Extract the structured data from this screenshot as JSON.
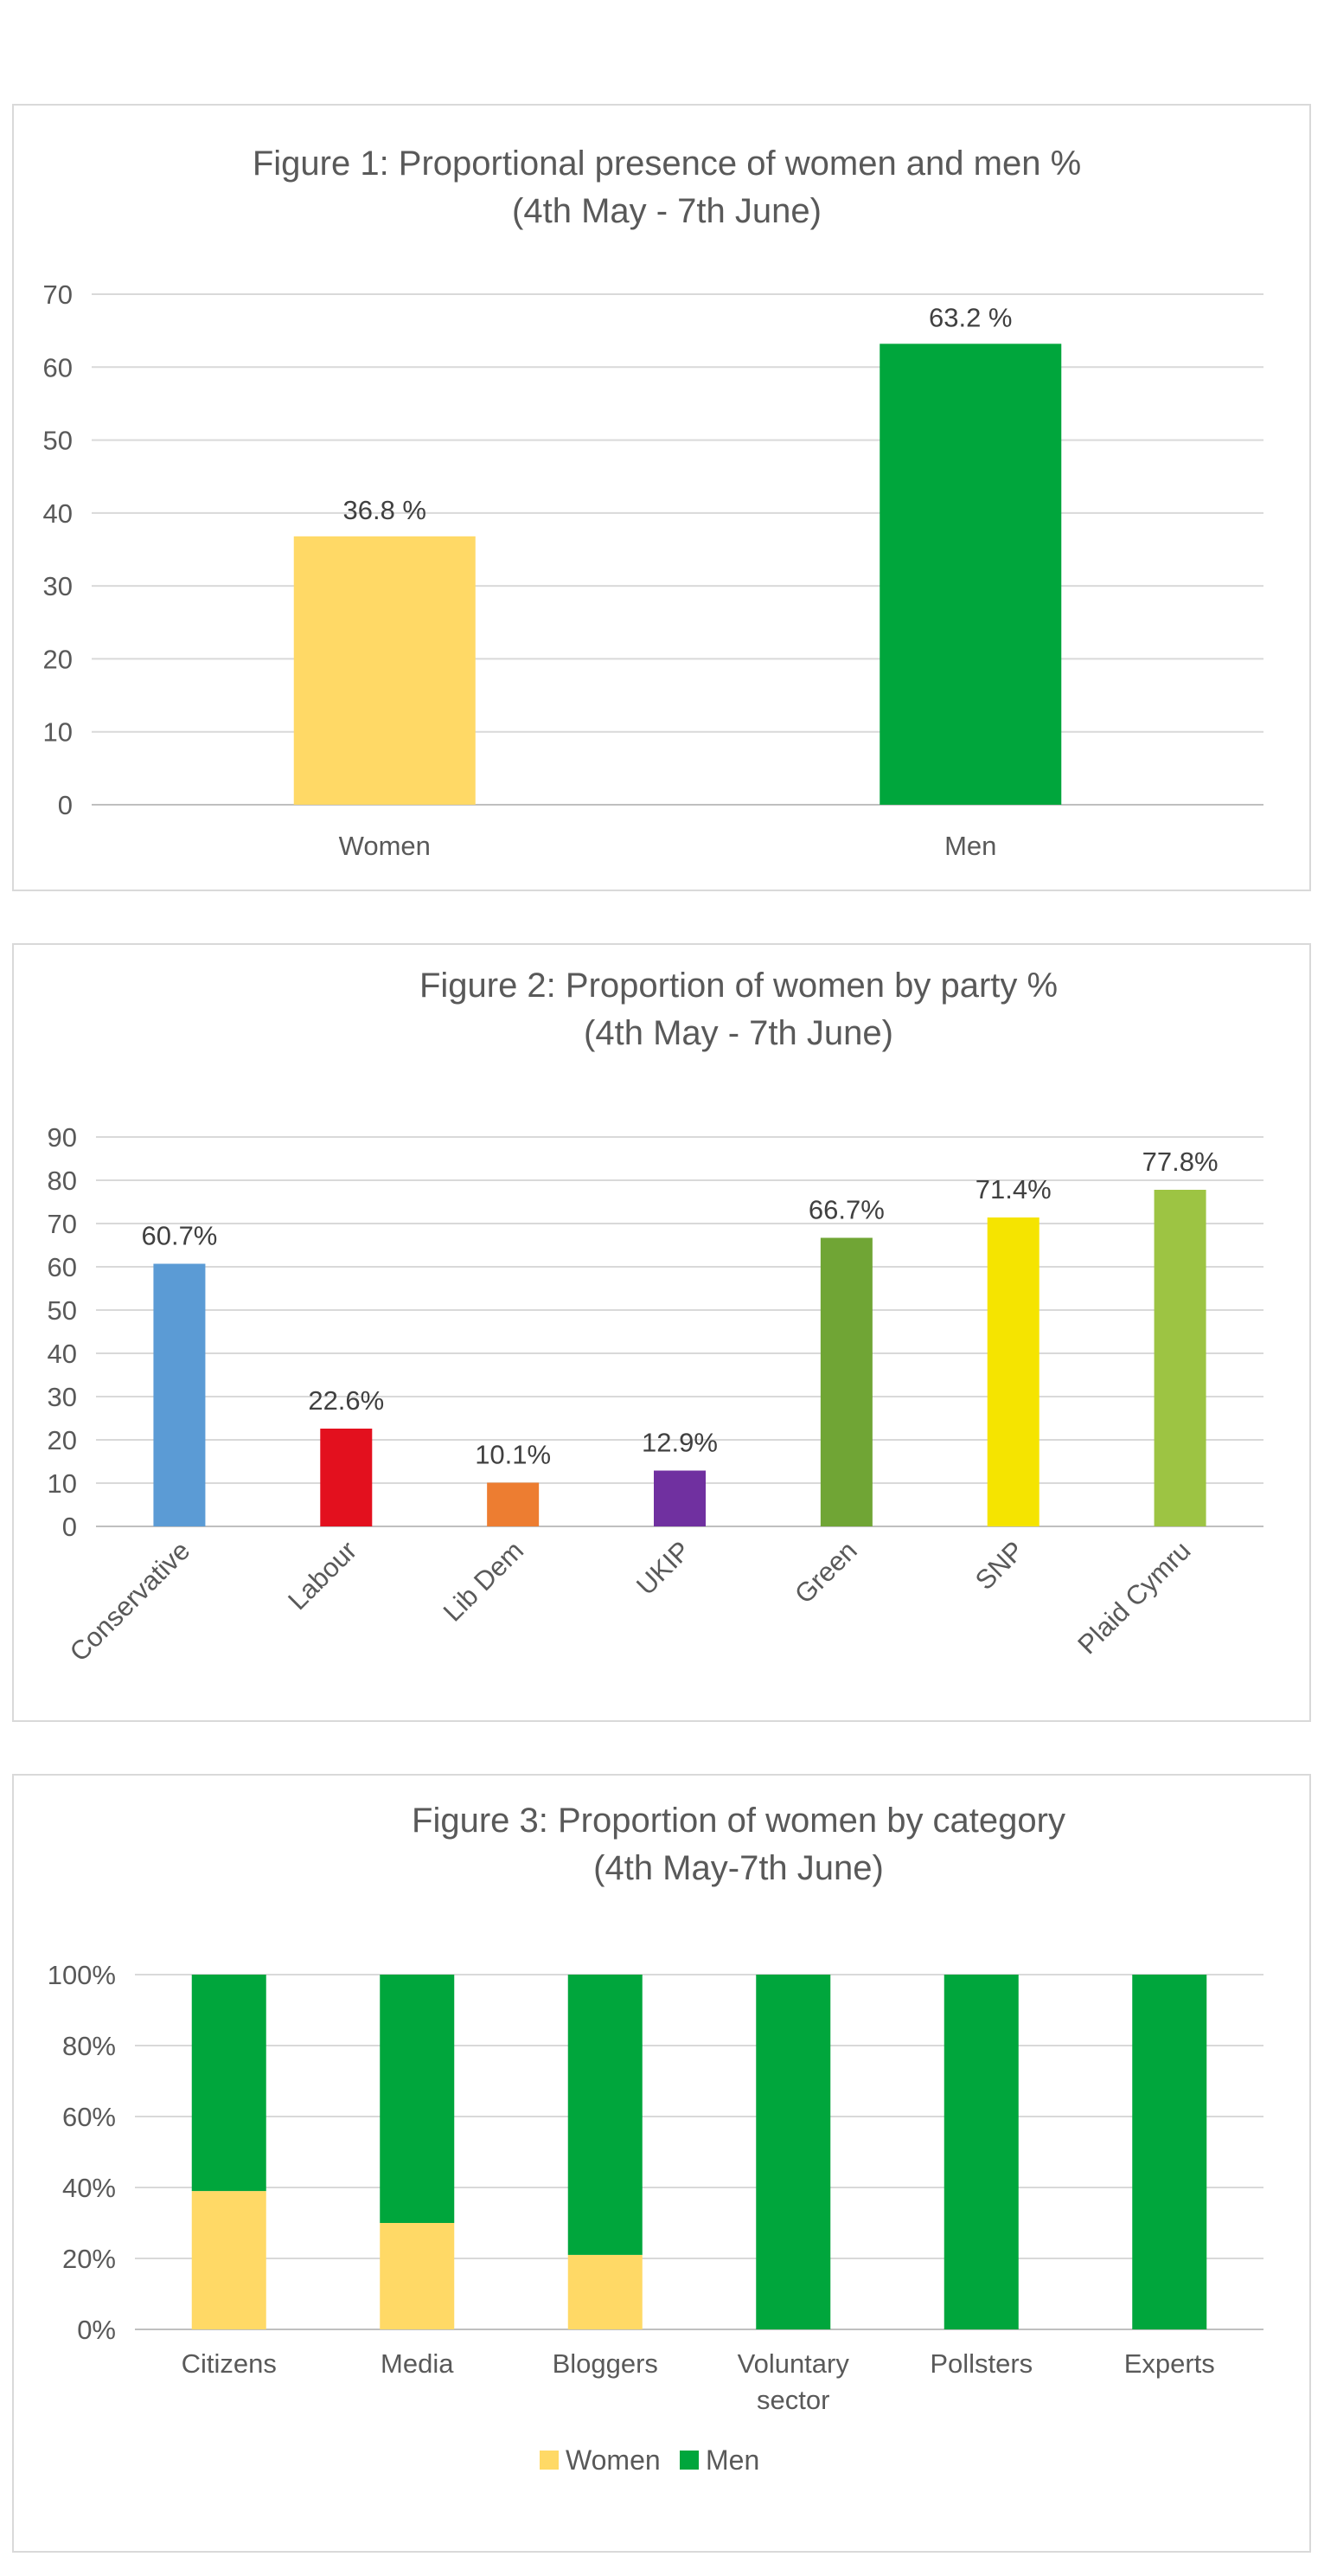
{
  "chart_data": [
    {
      "type": "bar",
      "title": "Figure 1: Proportional presence of women and men %",
      "subtitle": "(4th May - 7th June)",
      "categories": [
        "Women",
        "Men"
      ],
      "values": [
        36.8,
        63.2
      ],
      "data_labels": [
        "36.8 %",
        "63.2 %"
      ],
      "colors": [
        "#FFD966",
        "#00A63C"
      ],
      "yticks": [
        "0",
        "10",
        "20",
        "30",
        "40",
        "50",
        "60",
        "70"
      ],
      "ylim": [
        0,
        70
      ],
      "grid": true,
      "legend": "none"
    },
    {
      "type": "bar",
      "title": "Figure 2: Proportion of women by party %",
      "subtitle": "(4th May - 7th June)",
      "categories": [
        "Conservative",
        "Labour",
        "Lib Dem",
        "UKIP",
        "Green",
        "SNP",
        "Plaid Cymru"
      ],
      "values": [
        60.7,
        22.6,
        10.1,
        12.9,
        66.7,
        71.4,
        77.8
      ],
      "data_labels": [
        "60.7%",
        "22.6%",
        "10.1%",
        "12.9%",
        "66.7%",
        "71.4%",
        "77.8%"
      ],
      "colors": [
        "#5B9BD5",
        "#E3101E",
        "#ED7D31",
        "#7030A0",
        "#70A535",
        "#F5E400",
        "#9DC443"
      ],
      "yticks": [
        "0",
        "10",
        "20",
        "30",
        "40",
        "50",
        "60",
        "70",
        "80",
        "90"
      ],
      "ylim": [
        0,
        90
      ],
      "grid": true,
      "legend": "none"
    },
    {
      "type": "bar",
      "stacked": true,
      "title": "Figure 3: Proportion of women by category",
      "subtitle": "(4th May-7th June)",
      "categories": [
        "Citizens",
        "Media",
        "Bloggers",
        "Voluntary sector",
        "Pollsters",
        "Experts"
      ],
      "series": [
        {
          "name": "Women",
          "color": "#FFD966",
          "values": [
            39,
            30,
            21,
            0,
            0,
            0
          ]
        },
        {
          "name": "Men",
          "color": "#00A63C",
          "values": [
            61,
            70,
            79,
            100,
            100,
            100
          ]
        }
      ],
      "yticks": [
        "0%",
        "20%",
        "40%",
        "60%",
        "80%",
        "100%"
      ],
      "ylim": [
        0,
        100
      ],
      "grid": true,
      "legend": "bottom"
    }
  ]
}
